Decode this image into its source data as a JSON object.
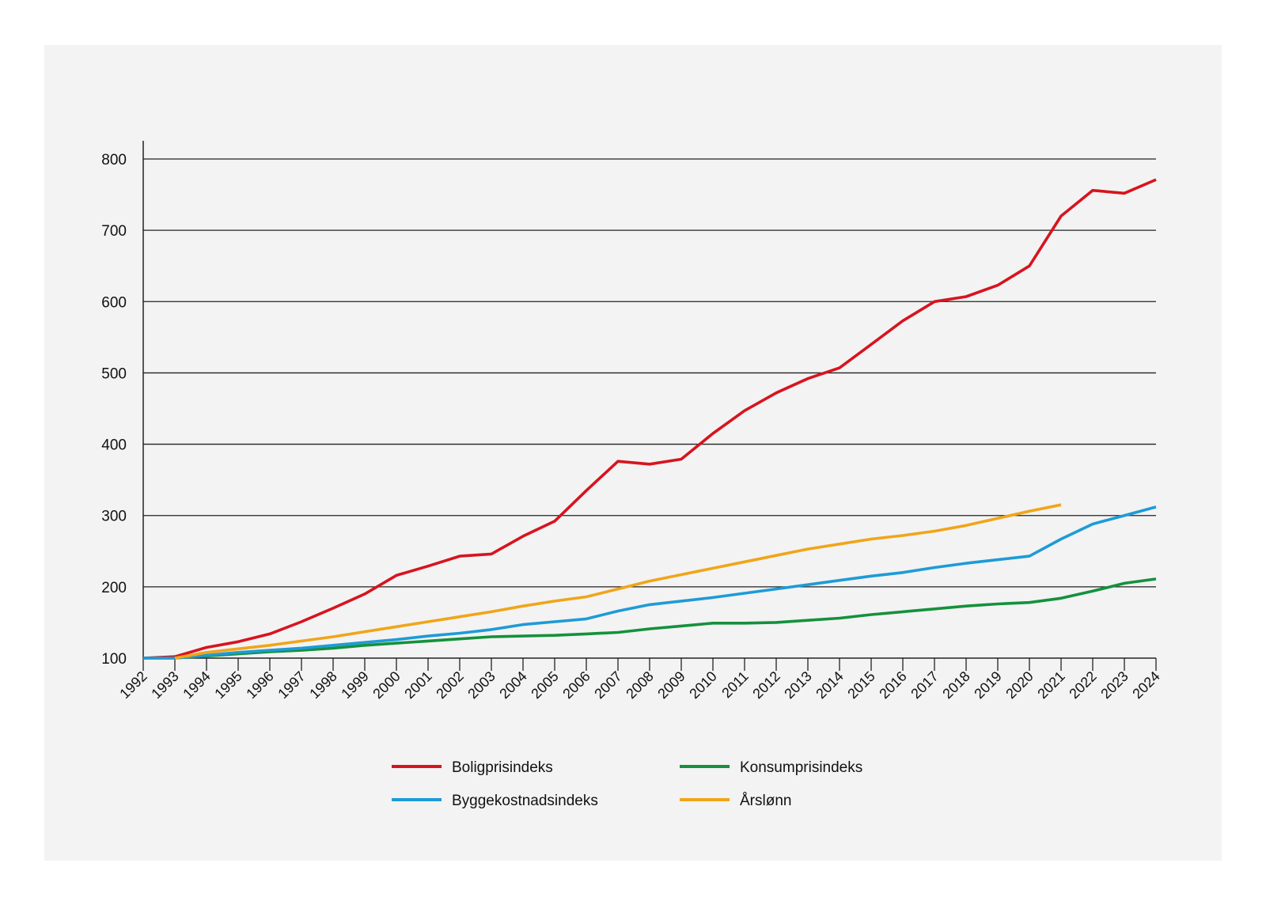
{
  "chart_data": {
    "type": "line",
    "title": "",
    "xlabel": "",
    "ylabel": "",
    "ylim": [
      100,
      800
    ],
    "yticks": [
      100,
      200,
      300,
      400,
      500,
      600,
      700,
      800
    ],
    "grid": true,
    "legend_position": "bottom",
    "x": [
      "1992",
      "1993",
      "1994",
      "1995",
      "1996",
      "1997",
      "1998",
      "1999",
      "2000",
      "2001",
      "2002",
      "2003",
      "2004",
      "2005",
      "2006",
      "2007",
      "2008",
      "2009",
      "2010",
      "2011",
      "2012",
      "2013",
      "2014",
      "2015",
      "2016",
      "2017",
      "2018",
      "2019",
      "2020",
      "2021",
      "2022",
      "2023",
      "2024"
    ],
    "series": [
      {
        "name": "Boligprisindeks",
        "color": "#d7141e",
        "values": [
          100,
          102,
          115,
          123,
          134,
          151,
          170,
          190,
          216,
          229,
          243,
          246,
          271,
          292,
          335,
          376,
          372,
          379,
          415,
          447,
          472,
          492,
          507,
          540,
          573,
          600,
          607,
          623,
          650,
          720,
          756,
          752,
          771
        ]
      },
      {
        "name": "Konsumprisindeks",
        "color": "#14913c",
        "values": [
          100,
          100,
          103,
          106,
          109,
          111,
          114,
          118,
          121,
          124,
          127,
          130,
          131,
          132,
          134,
          136,
          141,
          145,
          149,
          149,
          150,
          153,
          156,
          161,
          165,
          169,
          173,
          176,
          178,
          184,
          194,
          205,
          211
        ]
      },
      {
        "name": "Byggekostnadsindeks",
        "color": "#1e9bd7",
        "values": [
          100,
          100,
          104,
          108,
          111,
          114,
          118,
          122,
          126,
          131,
          135,
          140,
          147,
          151,
          155,
          166,
          175,
          180,
          185,
          191,
          197,
          203,
          209,
          215,
          220,
          227,
          233,
          238,
          243,
          267,
          288,
          300,
          312
        ]
      },
      {
        "name": "Årslønn",
        "color": "#f0a519",
        "values": [
          null,
          100,
          108,
          113,
          118,
          124,
          130,
          137,
          144,
          151,
          158,
          165,
          173,
          180,
          186,
          197,
          208,
          217,
          226,
          235,
          244,
          253,
          260,
          267,
          272,
          278,
          286,
          296,
          306,
          315,
          null,
          null,
          null
        ]
      }
    ]
  },
  "legend": {
    "items": [
      {
        "label": "Boligprisindeks",
        "color": "#d7141e"
      },
      {
        "label": "Konsumprisindeks",
        "color": "#14913c"
      },
      {
        "label": "Byggekostnadsindeks",
        "color": "#1e9bd7"
      },
      {
        "label": "Årslønn",
        "color": "#f0a519"
      }
    ]
  },
  "colors": {
    "background": "#f3f3f3",
    "axis": "#222222",
    "gridline": "#222222"
  }
}
